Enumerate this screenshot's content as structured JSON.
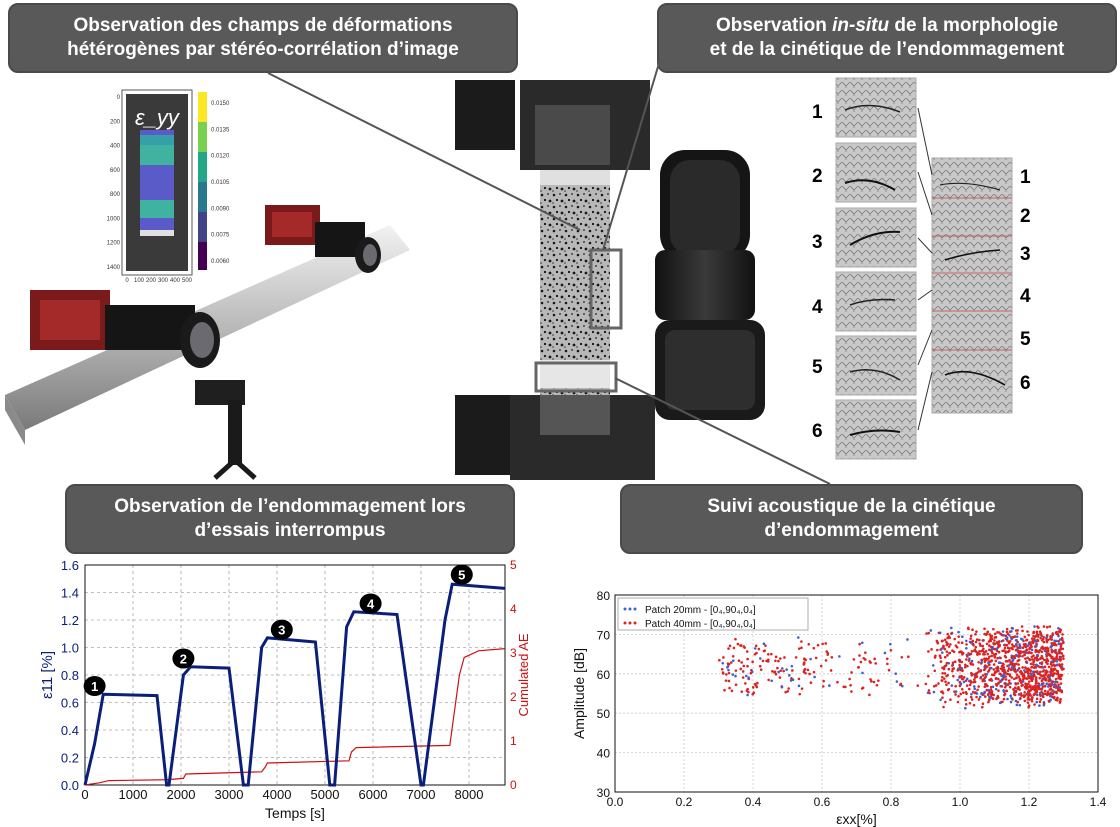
{
  "banners": {
    "top_left": {
      "line1": "Observation des champs de déformations",
      "line2": "hétérogènes par stéréo-corrélation d’image"
    },
    "top_right": {
      "line1_pre": "Observation ",
      "line1_em": "in-situ",
      "line1_post": " de la morphologie",
      "line2": "et de la cinétique de l’endommagement"
    },
    "bottom_left": {
      "line1": "Observation de l’endommagement lors",
      "line2": "d’essais interrompus"
    },
    "bottom_right": {
      "line1": "Suivi acoustique de la cinétique",
      "line2": "d’endommagement"
    }
  },
  "dic_map": {
    "label": "ε_yy",
    "y_ticks": [
      "0",
      "200",
      "400",
      "600",
      "800",
      "1000",
      "1200",
      "1400"
    ],
    "x_ticks": [
      "0",
      "100",
      "200",
      "300",
      "400",
      "500"
    ],
    "colorbar_ticks": [
      "0.0150",
      "0.0135",
      "0.0120",
      "0.0105",
      "0.0090",
      "0.0075",
      "0.0060"
    ]
  },
  "micro_images": {
    "left_numbers": [
      "1",
      "2",
      "3",
      "4",
      "5",
      "6"
    ],
    "right_numbers": [
      "1",
      "2",
      "3",
      "4",
      "5",
      "6"
    ]
  },
  "colors": {
    "banner": "#595959",
    "strain": "#0a1f7a",
    "ae": "#cc1111",
    "series1": "#4060d0",
    "series2": "#dd2222"
  },
  "chart_data": [
    {
      "type": "line",
      "xlabel": "Temps [s]",
      "ylabel_left": "ε11 [%]",
      "ylabel_right": "Cumulated AE",
      "xlim": [
        0,
        8750
      ],
      "ylim_left": [
        0,
        1.6
      ],
      "ylim_right": [
        0,
        5
      ],
      "x_ticks": [
        "0",
        "1000",
        "2000",
        "3000",
        "4000",
        "5000",
        "6000",
        "7000",
        "8000"
      ],
      "y_ticks_left": [
        "0.0",
        "0.2",
        "0.4",
        "0.6",
        "0.8",
        "1.0",
        "1.2",
        "1.4",
        "1.6"
      ],
      "y_ticks_right": [
        "0",
        "1",
        "2",
        "3",
        "4",
        "5"
      ],
      "grid": true,
      "series": [
        {
          "x": [
            0,
            200,
            380,
            1500,
            1700,
            1750,
            2050,
            2200,
            3000,
            3300,
            3400,
            3680,
            3800,
            4800,
            5100,
            5200,
            5450,
            5600,
            6500,
            7000,
            7050,
            7500,
            7650,
            8750
          ],
          "y": [
            0,
            0.3,
            0.66,
            0.65,
            0,
            0,
            0.8,
            0.86,
            0.85,
            0,
            0,
            1.0,
            1.07,
            1.04,
            0,
            0,
            1.15,
            1.26,
            1.24,
            0,
            0,
            1.2,
            1.46,
            1.43
          ]
        },
        {
          "x": [
            0,
            300,
            500,
            1700,
            2050,
            2100,
            3680,
            3750,
            3800,
            5500,
            5550,
            5650,
            7600,
            7800,
            7900,
            8200,
            8750
          ],
          "y": [
            0,
            0.05,
            0.1,
            0.12,
            0.15,
            0.25,
            0.3,
            0.4,
            0.5,
            0.55,
            0.75,
            0.85,
            0.9,
            2.5,
            2.9,
            3.05,
            3.1
          ]
        }
      ],
      "annotations": [
        {
          "label": "1",
          "x": 1000,
          "y": 0.72
        },
        {
          "label": "2",
          "x": 2850,
          "y": 0.92
        },
        {
          "label": "3",
          "x": 4900,
          "y": 1.13
        },
        {
          "label": "4",
          "x": 6750,
          "y": 1.32
        },
        {
          "label": "5",
          "x": 8650,
          "y": 1.53
        }
      ]
    },
    {
      "type": "scatter",
      "xlabel": "εxx[%]",
      "ylabel": "Amplitude [dB]",
      "xlim": [
        0,
        1.4
      ],
      "ylim": [
        30,
        80
      ],
      "x_ticks": [
        "0.0",
        "0.2",
        "0.4",
        "0.6",
        "0.8",
        "1.0",
        "1.2",
        "1.4"
      ],
      "y_ticks": [
        "30",
        "40",
        "50",
        "60",
        "70",
        "80"
      ],
      "grid": true,
      "legend_position": "top-left",
      "series": [
        {
          "name": "Patch 20mm - [0₄,90₄,0₄]"
        },
        {
          "name": "Patch 40mm - [0₄,90₄,0₄]"
        }
      ]
    }
  ]
}
